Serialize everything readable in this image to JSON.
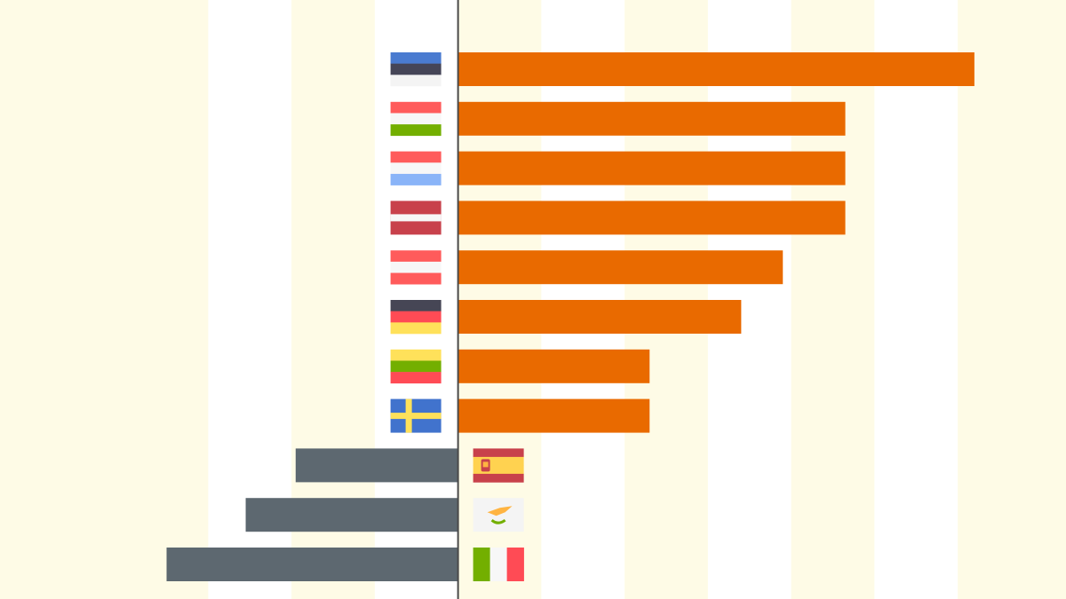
{
  "chart_data": {
    "type": "hbar",
    "categories": [
      null,
      null,
      null,
      null,
      null,
      null,
      null,
      null,
      null,
      null,
      null
    ],
    "values": [
      6.2,
      4.65,
      4.65,
      4.65,
      3.9,
      3.4,
      2.3,
      2.3,
      -1.95,
      -2.55,
      -3.5
    ],
    "color": "#e96a00",
    "negative_color": "#5d6870",
    "xlim": [
      -5.5,
      7.3
    ],
    "xticks": [
      -3,
      -2,
      -1,
      0,
      1,
      2,
      3,
      4,
      5,
      6
    ],
    "grid": true
  }
}
